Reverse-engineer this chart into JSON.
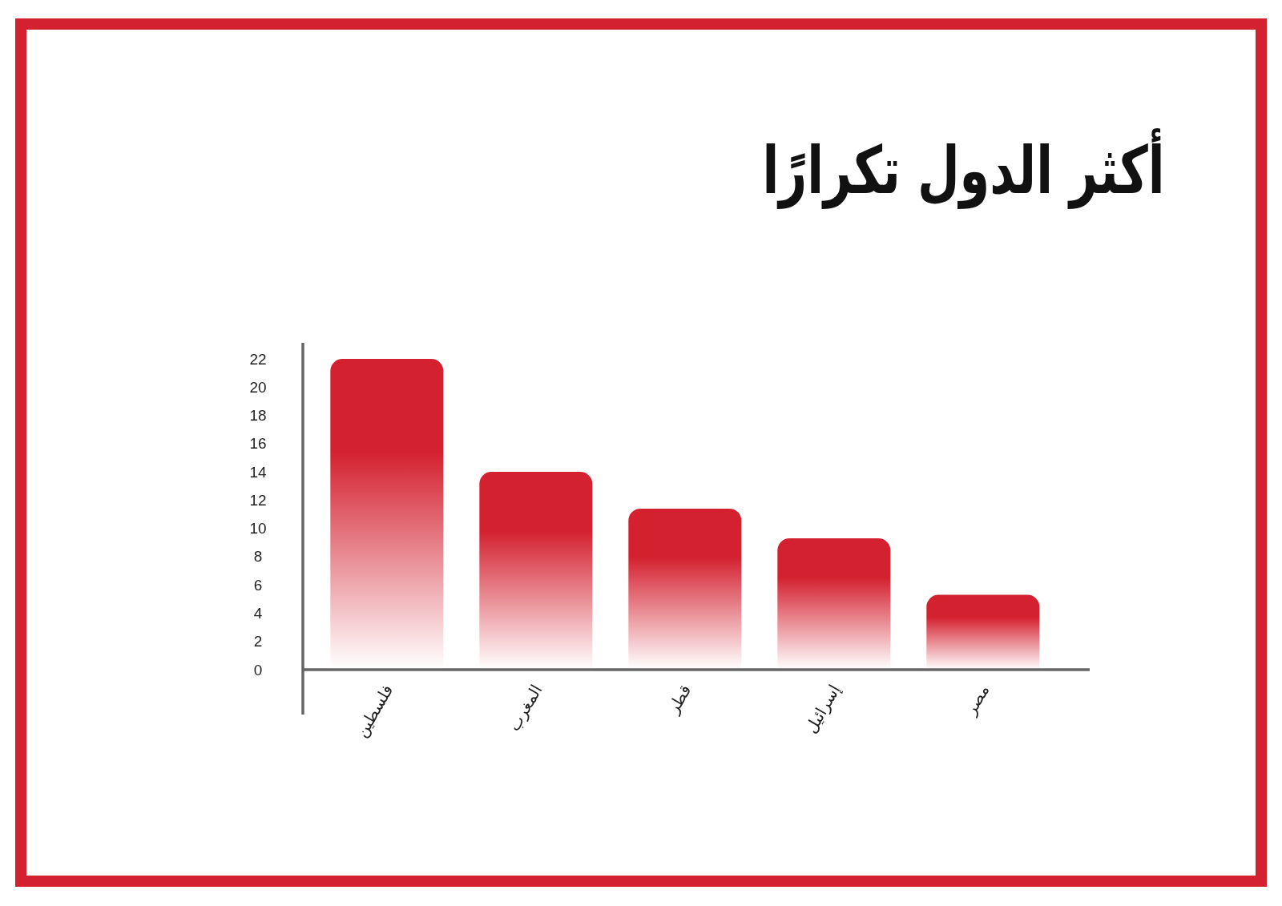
{
  "chart_data": {
    "type": "bar",
    "title": "أكثر الدول تكرارًا",
    "categories": [
      "فلسطين",
      "المغرب",
      "قطر",
      "إسرائيل",
      "مصر"
    ],
    "values": [
      22,
      14,
      11.4,
      9.3,
      5.3
    ],
    "color": "#d42130",
    "ylim": [
      0,
      22
    ],
    "yticks": [
      0,
      2,
      4,
      6,
      8,
      10,
      12,
      14,
      16,
      18,
      20,
      22
    ]
  }
}
